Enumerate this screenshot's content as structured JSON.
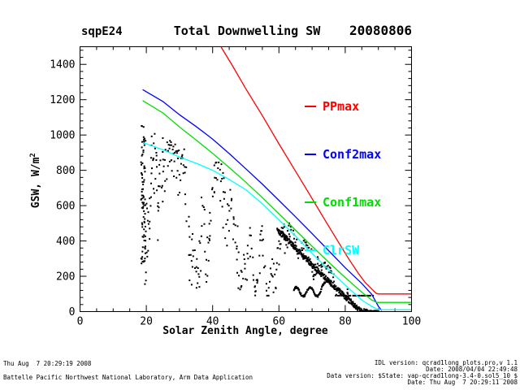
{
  "chart_data": {
    "type": "line+scatter",
    "site": "sqpE24",
    "title": "Total Downwelling SW",
    "date": "20080806",
    "xlabel": "Solar Zenith Angle, degree",
    "ylabel": "GSW, W/m",
    "ylabel_exp": "2",
    "xlim": [
      0,
      100
    ],
    "ylim": [
      0,
      1500
    ],
    "x_major_ticks": [
      0,
      20,
      40,
      60,
      80,
      100
    ],
    "x_minor_step": 5,
    "y_major_ticks": [
      0,
      200,
      400,
      600,
      800,
      1000,
      1200,
      1400
    ],
    "y_minor_step": 40,
    "grid": false,
    "axis_color": "#000000",
    "legend_position": "top-right-inside",
    "series": [
      {
        "name": "PPmax",
        "color": "#ff0000",
        "points": [
          [
            42.5,
            1500
          ],
          [
            46,
            1392
          ],
          [
            50,
            1262
          ],
          [
            55,
            1110
          ],
          [
            60,
            950
          ],
          [
            65,
            795
          ],
          [
            70,
            640
          ],
          [
            74,
            515
          ],
          [
            78,
            392
          ],
          [
            81,
            300
          ],
          [
            84,
            216
          ],
          [
            86,
            165
          ],
          [
            88,
            128
          ],
          [
            89.3,
            104
          ],
          [
            90,
            100
          ],
          [
            100,
            100
          ]
        ]
      },
      {
        "name": "Conf2max",
        "color": "#0000ff",
        "points": [
          [
            18.9,
            1257
          ],
          [
            25,
            1190
          ],
          [
            30,
            1115
          ],
          [
            35,
            1048
          ],
          [
            40,
            977
          ],
          [
            45,
            895
          ],
          [
            50,
            809
          ],
          [
            55,
            722
          ],
          [
            60,
            630
          ],
          [
            65,
            537
          ],
          [
            70,
            442
          ],
          [
            75,
            345
          ],
          [
            80,
            248
          ],
          [
            85,
            159
          ],
          [
            88,
            98
          ],
          [
            90,
            30
          ],
          [
            91,
            5
          ]
        ]
      },
      {
        "name": "Conf1max",
        "color": "#00dd00",
        "points": [
          [
            18.9,
            1195
          ],
          [
            25,
            1125
          ],
          [
            30,
            1046
          ],
          [
            35,
            972
          ],
          [
            40,
            896
          ],
          [
            45,
            816
          ],
          [
            50,
            733
          ],
          [
            55,
            645
          ],
          [
            60,
            554
          ],
          [
            65,
            462
          ],
          [
            70,
            370
          ],
          [
            75,
            280
          ],
          [
            80,
            193
          ],
          [
            85,
            110
          ],
          [
            88,
            66
          ],
          [
            89.5,
            52
          ],
          [
            100,
            52
          ]
        ]
      },
      {
        "name": "ClrSW",
        "color": "#00ffff",
        "points": [
          [
            18.9,
            958
          ],
          [
            25,
            916
          ],
          [
            30,
            875
          ],
          [
            35,
            840
          ],
          [
            40,
            800
          ],
          [
            45,
            748
          ],
          [
            50,
            690
          ],
          [
            55,
            610
          ],
          [
            60,
            520
          ],
          [
            65,
            428
          ],
          [
            70,
            330
          ],
          [
            75,
            238
          ],
          [
            80,
            150
          ],
          [
            85,
            65
          ],
          [
            88,
            30
          ],
          [
            90,
            10
          ],
          [
            100,
            10
          ]
        ]
      }
    ],
    "scatter": {
      "color": "#000000",
      "marker_px": 2,
      "seed": 42,
      "x_range": [
        18.4,
        90
      ],
      "y_range": [
        0,
        1070
      ],
      "noon_cluster": {
        "x_min": 18.4,
        "x_max": 19.8,
        "y_min": 260,
        "y_max": 1055,
        "n": 70
      },
      "cloud": {
        "x_min": 19,
        "x_max": 88,
        "n": 430,
        "y_min": 90,
        "envelope_scale": 1.07,
        "walk_step": 0.38
      },
      "clear_band": {
        "x_min": 59.5,
        "x_max": 90,
        "n": 400,
        "offset": -66,
        "width": 30
      },
      "band_blob": {
        "x_min": 85.5,
        "x_max": 90,
        "n": 80,
        "width": 60
      },
      "wiggle": {
        "x_min": 64.5,
        "x_max": 74,
        "n": 90,
        "base": 112,
        "amp": 26,
        "period": 4.2,
        "jitter": 10
      }
    }
  },
  "footer": {
    "created": "Thu Aug  7 20:29:19 2008",
    "organization": "Battelle Pacific Northwest National Laboratory, Arm Data Application",
    "right_lines": [
      "IDL version: qcrad1long_plots.pro,v 1.1",
      "Date: 2008/04/04 22:49:48",
      "Data version: $State: vap-qcrad1long-3.4-0.sol5_10 $",
      "Date: Thu Aug  7 20:29:11 2008"
    ]
  }
}
